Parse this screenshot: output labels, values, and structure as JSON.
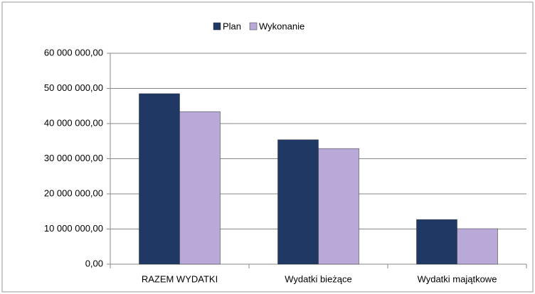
{
  "chart_data": {
    "type": "bar",
    "categories": [
      "RAZEM WYDATKI",
      "Wydatki bieżące",
      "Wydatki majątkowe"
    ],
    "series": [
      {
        "name": "Plan",
        "color": "#1f3864",
        "values": [
          48500000,
          35400000,
          12700000
        ]
      },
      {
        "name": "Wykonanie",
        "color": "#b8a9d9",
        "values": [
          43400000,
          32900000,
          10100000
        ]
      }
    ],
    "ylim": [
      0,
      60000000
    ],
    "yticks": [
      {
        "value": 0,
        "label": "0,00"
      },
      {
        "value": 10000000,
        "label": "10 000 000,00"
      },
      {
        "value": 20000000,
        "label": "20 000 000,00"
      },
      {
        "value": 30000000,
        "label": "30 000 000,00"
      },
      {
        "value": 40000000,
        "label": "40 000 000,00"
      },
      {
        "value": 50000000,
        "label": "50 000 000,00"
      },
      {
        "value": 60000000,
        "label": "60 000 000,00"
      }
    ],
    "grid": true,
    "legend": "top"
  }
}
